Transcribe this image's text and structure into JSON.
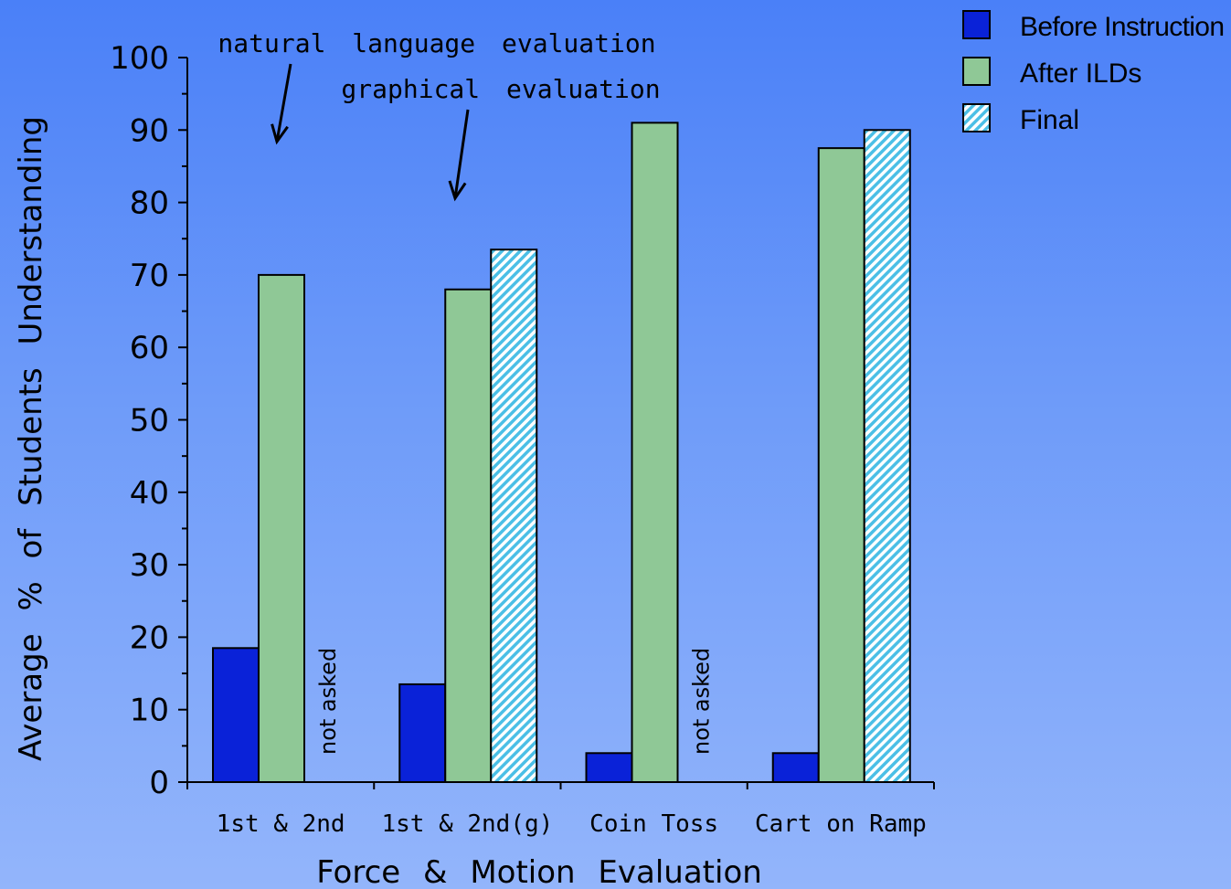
{
  "chart_data": {
    "type": "bar",
    "categories": [
      "1st & 2nd",
      "1st & 2nd(g)",
      "Coin Toss",
      "Cart on Ramp"
    ],
    "series": [
      {
        "name": "Before Instruction",
        "color": "#0a22d8",
        "values": [
          18.5,
          13.5,
          4,
          4
        ]
      },
      {
        "name": "After ILDs",
        "color": "#8fc896",
        "values": [
          70,
          68,
          91,
          87.5
        ]
      },
      {
        "name": "Final",
        "color": "#5fc4e8",
        "pattern": "hatched",
        "values": [
          null,
          73.5,
          null,
          90
        ]
      }
    ],
    "ylabel": "Average % of Students Understanding",
    "xlabel": "Force & Motion Evaluation",
    "ylim": [
      0,
      100
    ],
    "yticks": [
      0,
      10,
      20,
      30,
      40,
      50,
      60,
      70,
      80,
      90,
      100
    ],
    "grid": false,
    "legend": "top-right",
    "annotations": [
      {
        "text": "natural language evaluation",
        "points_to": "1st & 2nd"
      },
      {
        "text": "graphical evaluation",
        "points_to": "1st & 2nd(g)"
      },
      {
        "text": "not asked",
        "category": "1st & 2nd",
        "series": "Final"
      },
      {
        "text": "not asked",
        "category": "Coin Toss",
        "series": "Final"
      }
    ]
  }
}
